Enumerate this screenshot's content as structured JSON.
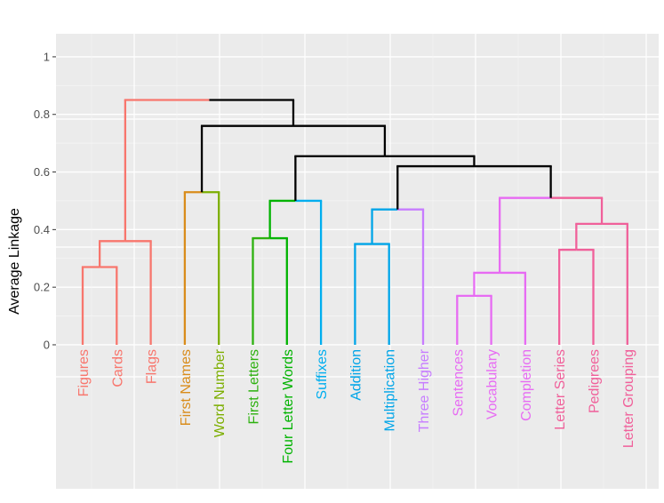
{
  "chart_data": {
    "type": "dendrogram",
    "title": "",
    "xlabel": "",
    "ylabel": "Average Linkage",
    "ylim": [
      -0.5,
      1.08
    ],
    "y_ticks": [
      {
        "value": 0,
        "label": "0"
      },
      {
        "value": 0.2,
        "label": "0.2"
      },
      {
        "value": 0.4,
        "label": "0.4"
      },
      {
        "value": 0.6,
        "label": "0.6"
      },
      {
        "value": 0.8,
        "label": "0.8"
      },
      {
        "value": 1,
        "label": "1"
      }
    ],
    "grid": true,
    "leaves": [
      {
        "label": "Figures",
        "color": "#F8766D"
      },
      {
        "label": "Cards",
        "color": "#F8766D"
      },
      {
        "label": "Flags",
        "color": "#F8766D"
      },
      {
        "label": "First Names",
        "color": "#D98C1B"
      },
      {
        "label": "Word Number",
        "color": "#7CAE00"
      },
      {
        "label": "First Letters",
        "color": "#2DB10F"
      },
      {
        "label": "Four Letter Words",
        "color": "#00B300"
      },
      {
        "label": "Suffixes",
        "color": "#00AEEF"
      },
      {
        "label": "Addition",
        "color": "#00A5E8"
      },
      {
        "label": "Multiplication",
        "color": "#00A5E8"
      },
      {
        "label": "Three Higher",
        "color": "#C77CFF"
      },
      {
        "label": "Sentences",
        "color": "#E76BF3"
      },
      {
        "label": "Vocabulary",
        "color": "#E76BF3"
      },
      {
        "label": "Completion",
        "color": "#E76BF3"
      },
      {
        "label": "Letter Series",
        "color": "#F0609A"
      },
      {
        "label": "Pedigrees",
        "color": "#F0609A"
      },
      {
        "label": "Letter Grouping",
        "color": "#F0609A"
      }
    ],
    "merges": [
      {
        "left": "L0",
        "right": "L1",
        "height": 0.27,
        "color": "#F8766D",
        "rcolor": "#F8766D"
      },
      {
        "left": "M0",
        "right": "L2",
        "height": 0.36,
        "color": "#F8766D",
        "rcolor": "#F8766D"
      },
      {
        "left": "L3",
        "right": "L4",
        "height": 0.53,
        "color": "#D98C1B",
        "rcolor": "#7CAE00"
      },
      {
        "left": "L5",
        "right": "L6",
        "height": 0.37,
        "color": "#2DB10F",
        "rcolor": "#00B300"
      },
      {
        "left": "M3",
        "right": "L7",
        "height": 0.5,
        "color": "#00B300",
        "rcolor": "#00AEEF"
      },
      {
        "left": "L8",
        "right": "L9",
        "height": 0.35,
        "color": "#00A5E8",
        "rcolor": "#00A5E8"
      },
      {
        "left": "M5",
        "right": "L10",
        "height": 0.47,
        "color": "#00A5E8",
        "rcolor": "#C77CFF"
      },
      {
        "left": "L11",
        "right": "L12",
        "height": 0.17,
        "color": "#E76BF3",
        "rcolor": "#E76BF3"
      },
      {
        "left": "M7",
        "right": "L13",
        "height": 0.25,
        "color": "#E76BF3",
        "rcolor": "#E76BF3"
      },
      {
        "left": "L14",
        "right": "L15",
        "height": 0.33,
        "color": "#F0609A",
        "rcolor": "#F0609A"
      },
      {
        "left": "M9",
        "right": "L16",
        "height": 0.42,
        "color": "#F0609A",
        "rcolor": "#F0609A"
      },
      {
        "left": "M8",
        "right": "M10",
        "height": 0.51,
        "color": "#E76BF3",
        "rcolor": "#F0609A"
      },
      {
        "left": "M6",
        "right": "M11",
        "height": 0.62,
        "color": "#000000",
        "rcolor": "#000000"
      },
      {
        "left": "M4",
        "right": "M12",
        "height": 0.655,
        "color": "#000000",
        "rcolor": "#000000"
      },
      {
        "left": "M2",
        "right": "M13",
        "height": 0.76,
        "color": "#000000",
        "rcolor": "#000000"
      },
      {
        "left": "M1",
        "right": "M14",
        "height": 0.85,
        "color": "#F8766D",
        "rcolor": "#000000"
      }
    ]
  }
}
